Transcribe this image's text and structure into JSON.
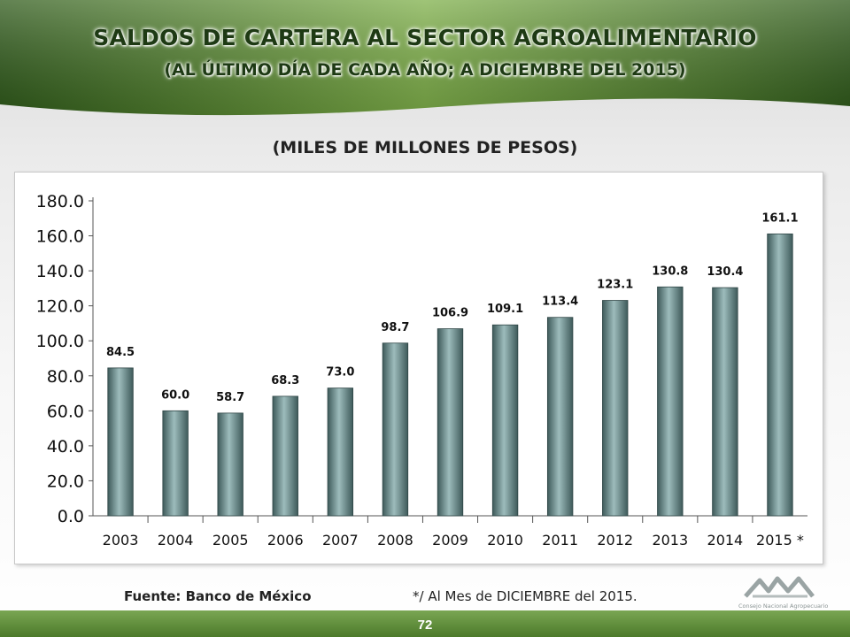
{
  "slide": {
    "title": "SALDOS DE CARTERA AL SECTOR AGROALIMENTARIO",
    "subtitle_line": "(AL ÚLTIMO DÍA DE CADA AÑO; A  DICIEMBRE DEL 2015)",
    "units_label": "(MILES DE MILLONES DE PESOS)",
    "source": "Fuente: Banco de México",
    "note": "*/ Al Mes de DICIEMBRE  del 2015.",
    "page_number": "72",
    "logo_caption": "Consejo Nacional Agropecuario"
  },
  "colors": {
    "bar_dark": "#3e5a5a",
    "bar_light": "#9dbcbc",
    "title_text": "#1e3a14",
    "header_green": "#3f6b22",
    "footer_green": "#4c7a2a"
  },
  "chart_data": {
    "type": "bar",
    "title": "",
    "xlabel": "",
    "ylabel": "",
    "categories": [
      "2003",
      "2004",
      "2005",
      "2006",
      "2007",
      "2008",
      "2009",
      "2010",
      "2011",
      "2012",
      "2013",
      "2014",
      "2015 *"
    ],
    "values": [
      84.5,
      60.0,
      58.7,
      68.3,
      73.0,
      98.7,
      106.9,
      109.1,
      113.4,
      123.1,
      130.8,
      130.4,
      161.1
    ],
    "data_labels": [
      "84.5",
      "60.0",
      "58.7",
      "68.3",
      "73.0",
      "98.7",
      "106.9",
      "109.1",
      "113.4",
      "123.1",
      "130.8",
      "130.4",
      "161.1"
    ],
    "ylim": [
      0,
      180
    ],
    "yticks": [
      "0.0",
      "20.0",
      "40.0",
      "60.0",
      "80.0",
      "100.0",
      "120.0",
      "140.0",
      "160.0",
      "180.0"
    ],
    "grid": false,
    "legend": "none"
  }
}
